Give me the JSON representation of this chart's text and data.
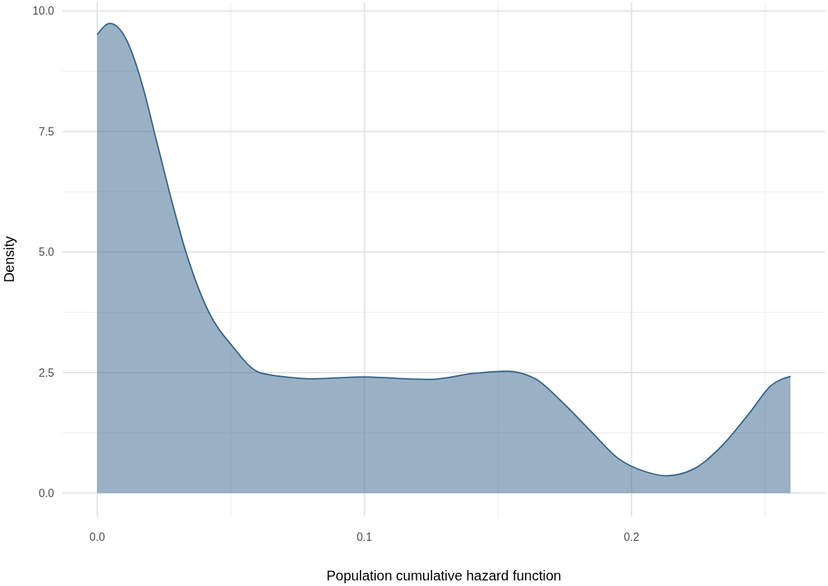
{
  "chart_data": {
    "type": "area",
    "xlabel": "Population cumulative hazard function",
    "ylabel": "Density",
    "x": [
      0,
      0.0047,
      0.0106,
      0.014,
      0.0177,
      0.0213,
      0.027,
      0.0332,
      0.0418,
      0.0504,
      0.0608,
      0.0725,
      0.0808,
      0.1,
      0.112,
      0.125,
      0.1405,
      0.1535,
      0.164,
      0.174,
      0.185,
      0.195,
      0.2055,
      0.213,
      0.2236,
      0.234,
      0.2444,
      0.2522,
      0.2595
    ],
    "series": [
      {
        "color": "#36648b",
        "values": [
          9.51,
          9.74,
          9.44,
          8.98,
          8.3,
          7.5,
          6.25,
          5.0,
          3.75,
          3.06,
          2.5,
          2.4,
          2.37,
          2.41,
          2.38,
          2.36,
          2.48,
          2.53,
          2.37,
          1.89,
          1.27,
          0.72,
          0.44,
          0.36,
          0.51,
          0.99,
          1.68,
          2.23,
          2.42
        ]
      }
    ],
    "xlim": [
      -0.013,
      0.2725
    ],
    "ylim": [
      -0.485,
      10.185
    ],
    "xticks": [
      {
        "value": 0,
        "label": "0.0"
      },
      0.1,
      0.2
    ],
    "yticks": [
      {
        "value": 0,
        "label": "0.0"
      },
      2.5,
      {
        "value": 5,
        "label": "5.0"
      },
      7.5,
      {
        "value": 10,
        "label": "10.0"
      }
    ],
    "grid": true
  }
}
